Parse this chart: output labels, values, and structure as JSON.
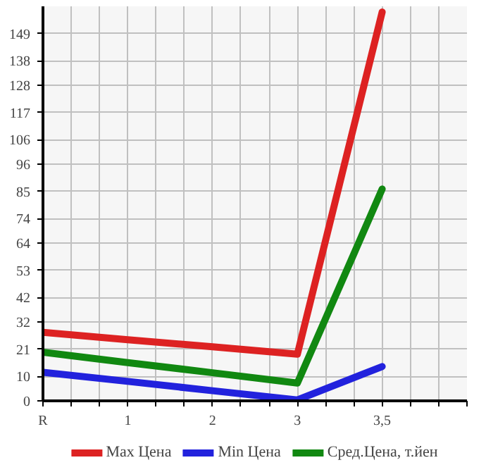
{
  "chart_data": {
    "type": "line",
    "categories": [
      "R",
      "1",
      "2",
      "3",
      "3,5",
      null
    ],
    "series": [
      {
        "name": "Max Цена",
        "color": "#dd2222",
        "values": [
          27.8,
          24.8,
          21.9,
          18.9,
          157.7,
          null
        ]
      },
      {
        "name": "Min Цена",
        "color": "#2222dd",
        "values": [
          11.6,
          7.9,
          4.1,
          0.4,
          13.9,
          null
        ]
      },
      {
        "name": "Сред.Цена, т.йен",
        "color": "#118811",
        "values": [
          19.7,
          15.5,
          11.4,
          7.2,
          85.9,
          null
        ]
      }
    ],
    "ylim": [
      0,
      160
    ],
    "yticks": [
      0,
      10,
      21,
      32,
      42,
      53,
      64,
      74,
      85,
      96,
      106,
      117,
      128,
      138,
      149
    ],
    "grid": true,
    "legend": "bottom",
    "line_style": "solid"
  }
}
